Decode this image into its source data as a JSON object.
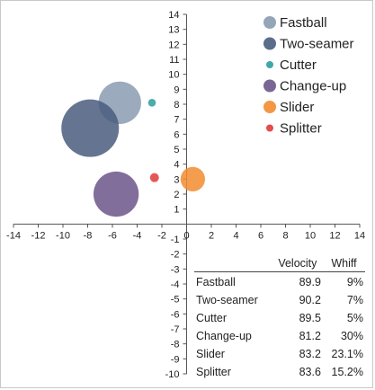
{
  "chart_data": {
    "type": "scatter",
    "subtype": "bubble",
    "xlim": [
      -14,
      14
    ],
    "ylim": [
      -10,
      14
    ],
    "x_ticks": [
      -14,
      -12,
      -10,
      -8,
      -6,
      -4,
      -2,
      0,
      2,
      4,
      6,
      8,
      10,
      12,
      14
    ],
    "y_ticks": [
      -10,
      -9,
      -8,
      -7,
      -6,
      -5,
      -4,
      -3,
      -2,
      -1,
      1,
      2,
      3,
      4,
      5,
      6,
      7,
      8,
      9,
      10,
      11,
      12,
      13,
      14
    ],
    "grid": false,
    "legend_position": "top-right",
    "series": [
      {
        "name": "Fastball",
        "color": "#8A9BB0",
        "x": -5.4,
        "y": 8.1,
        "size": 9.0
      },
      {
        "name": "Two-seamer",
        "color": "#4A5D7E",
        "x": -7.8,
        "y": 6.4,
        "size": 16.5
      },
      {
        "name": "Cutter",
        "color": "#2B9E9E",
        "x": -2.8,
        "y": 8.1,
        "size": 0.3
      },
      {
        "name": "Change-up",
        "color": "#6B5588",
        "x": -5.7,
        "y": 2.0,
        "size": 10.2
      },
      {
        "name": "Slider",
        "color": "#F28C30",
        "x": 0.5,
        "y": 3.0,
        "size": 3.0
      },
      {
        "name": "Splitter",
        "color": "#E03A3A",
        "x": -2.6,
        "y": 3.1,
        "size": 0.4
      }
    ]
  },
  "table": {
    "headers": [
      "",
      "Velocity",
      "Whiff"
    ],
    "rows": [
      {
        "name": "Fastball",
        "velocity": "89.9",
        "whiff": "9%"
      },
      {
        "name": "Two-seamer",
        "velocity": "90.2",
        "whiff": "7%"
      },
      {
        "name": "Cutter",
        "velocity": "89.5",
        "whiff": "5%"
      },
      {
        "name": "Change-up",
        "velocity": "81.2",
        "whiff": "30%"
      },
      {
        "name": "Slider",
        "velocity": "83.2",
        "whiff": "23.1%"
      },
      {
        "name": "Splitter",
        "velocity": "83.6",
        "whiff": "15.2%"
      }
    ]
  }
}
